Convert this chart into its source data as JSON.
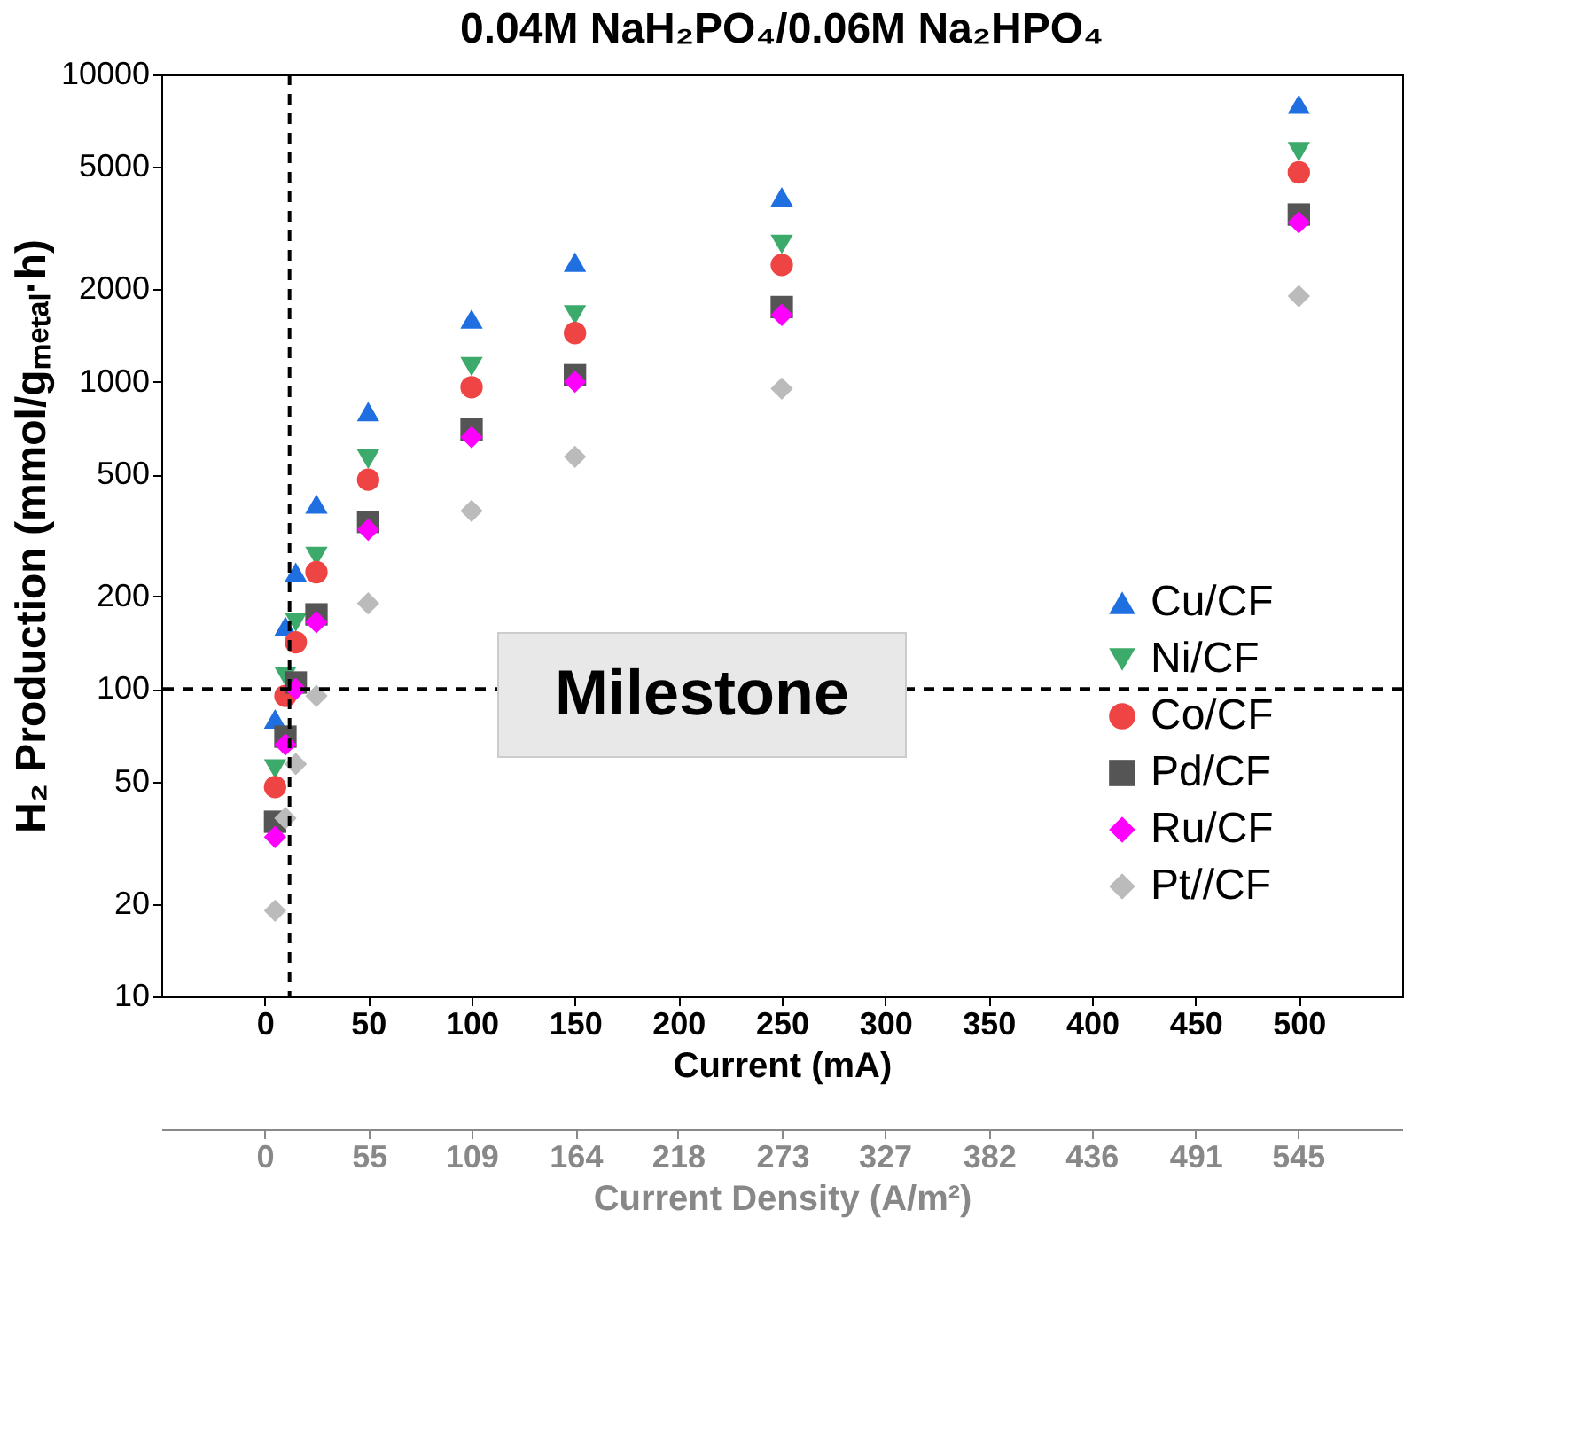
{
  "chart_data": {
    "type": "scatter",
    "title": "0.04M NaH₂PO₄/0.06M Na₂HPO₄",
    "xlabel": "Current (mA)",
    "ylabel": "H₂ Production (mmol/gₘₑₜₐₗ·h)",
    "x2label": "Current Density (A/m²)",
    "x": [
      5,
      10,
      15,
      25,
      50,
      100,
      150,
      250,
      500
    ],
    "series": [
      {
        "name": "Cu/CF",
        "color": "#1f6fe0",
        "marker": "triangle-up",
        "values": [
          80,
          160,
          240,
          400,
          800,
          1600,
          2450,
          4000,
          8000
        ]
      },
      {
        "name": "Ni/CF",
        "color": "#3caa6a",
        "marker": "triangle-down",
        "values": [
          55,
          110,
          165,
          270,
          560,
          1120,
          1650,
          2800,
          5600
        ]
      },
      {
        "name": "Co/CF",
        "color": "#ee4444",
        "marker": "circle",
        "values": [
          48,
          95,
          142,
          240,
          480,
          960,
          1440,
          2400,
          4800
        ]
      },
      {
        "name": "Pd/CF",
        "color": "#555555",
        "marker": "square",
        "values": [
          37,
          70,
          105,
          175,
          350,
          700,
          1050,
          1750,
          3500
        ]
      },
      {
        "name": "Ru/CF",
        "color": "#ff00ff",
        "marker": "diamond",
        "values": [
          33,
          66,
          100,
          165,
          330,
          660,
          1000,
          1650,
          3300
        ]
      },
      {
        "name": "Pt//CF",
        "color": "#bbbbbb",
        "marker": "diamond",
        "values": [
          19,
          38,
          57,
          95,
          190,
          380,
          570,
          950,
          1900
        ]
      }
    ],
    "log": "y",
    "xlim": [
      -50,
      550
    ],
    "xticks": [
      0,
      50,
      100,
      150,
      200,
      250,
      300,
      350,
      400,
      450,
      500
    ],
    "x2lim": [
      -54.5,
      600
    ],
    "x2ticks": [
      0,
      55,
      109,
      164,
      218,
      273,
      327,
      382,
      436,
      491,
      545
    ],
    "ylim": [
      10,
      10000
    ],
    "yticks": [
      10,
      20,
      50,
      100,
      200,
      500,
      1000,
      2000,
      5000,
      10000
    ],
    "ref_lines": [
      {
        "axis": "x",
        "value": 12,
        "color": "#000000",
        "line_style": "dashed"
      },
      {
        "axis": "y",
        "value": 100,
        "color": "#000000",
        "line_style": "dashed"
      }
    ],
    "annotations": [
      "Milestone"
    ],
    "grid": false,
    "legend": "right"
  }
}
